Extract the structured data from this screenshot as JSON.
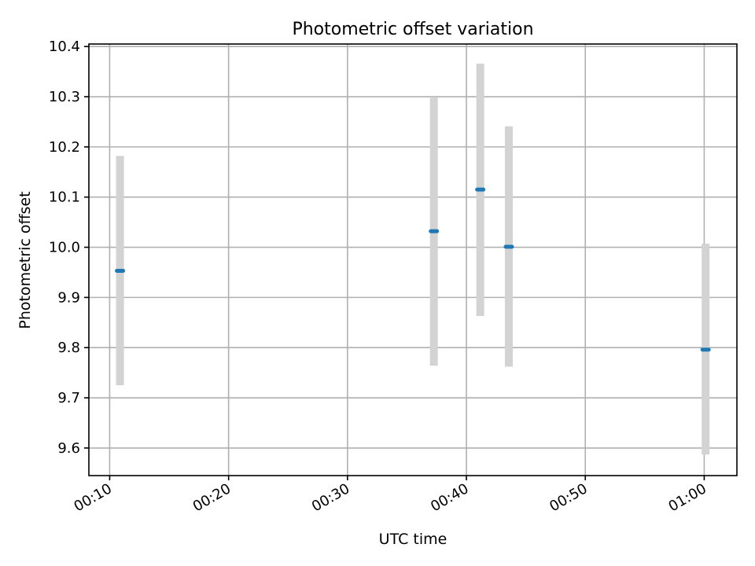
{
  "chart_data": {
    "type": "scatter",
    "title": "Photometric offset variation",
    "xlabel": "UTC time",
    "ylabel": "Photometric offset",
    "xlim": [
      "00:08:15",
      "01:02:45"
    ],
    "ylim": [
      9.545,
      10.405
    ],
    "x_ticks": [
      "00:10",
      "00:20",
      "00:30",
      "00:40",
      "00:50",
      "01:00"
    ],
    "y_ticks": [
      "9.6",
      "9.7",
      "9.8",
      "9.9",
      "10.0",
      "10.1",
      "10.2",
      "10.3",
      "10.4"
    ],
    "grid": true,
    "errorbar_color": "#d3d3d3",
    "marker_color": "#1f77b4",
    "points": [
      {
        "time": "00:10:52",
        "y": 9.953,
        "ylow": 9.725,
        "yhigh": 10.182
      },
      {
        "time": "00:37:16",
        "y": 10.032,
        "ylow": 9.764,
        "yhigh": 10.298
      },
      {
        "time": "00:41:10",
        "y": 10.115,
        "ylow": 9.863,
        "yhigh": 10.366
      },
      {
        "time": "00:43:34",
        "y": 10.001,
        "ylow": 9.762,
        "yhigh": 10.241
      },
      {
        "time": "01:00:07",
        "y": 9.796,
        "ylow": 9.587,
        "yhigh": 10.007
      }
    ]
  }
}
